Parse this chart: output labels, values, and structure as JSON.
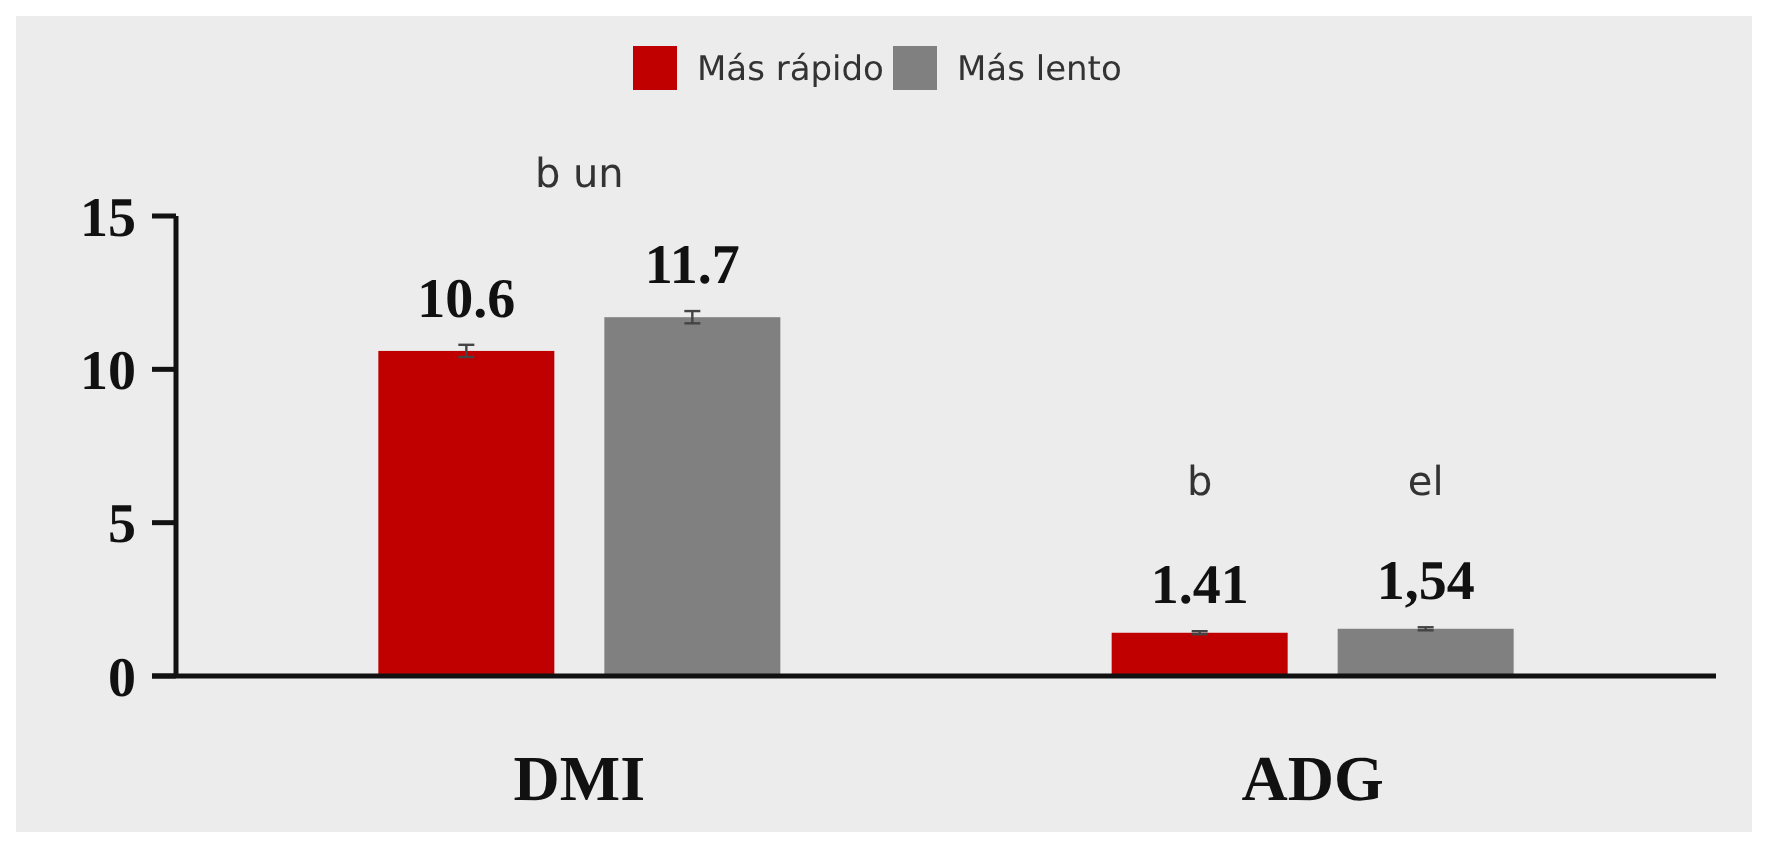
{
  "chart_data": {
    "type": "bar",
    "categories": [
      "DMI",
      "ADG"
    ],
    "series": [
      {
        "name": "Más rápido",
        "color": "#c00000",
        "values": [
          10.6,
          1.41
        ],
        "errors": [
          0.2,
          0.05
        ],
        "value_labels": [
          "10.6",
          "1.41"
        ]
      },
      {
        "name": "Más lento",
        "color": "#808080",
        "values": [
          11.7,
          1.54
        ],
        "errors": [
          0.2,
          0.05
        ],
        "value_labels": [
          "11.7",
          "1,54"
        ]
      }
    ],
    "ylim": [
      0,
      15
    ],
    "yticks": [
      0,
      5,
      10,
      15
    ],
    "legend": "top",
    "grid": false,
    "annotations": [
      "b un",
      "b",
      "el"
    ]
  }
}
